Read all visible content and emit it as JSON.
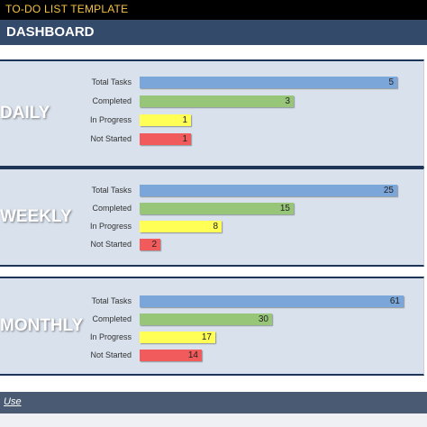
{
  "app": {
    "title": "TO-DO LIST TEMPLATE"
  },
  "header": {
    "title": "DASHBOARD"
  },
  "footer": {
    "link": "Use"
  },
  "labels": {
    "total": "Total Tasks",
    "completed": "Completed",
    "in_progress": "In Progress",
    "not_started": "Not Started"
  },
  "colors": {
    "total": "#7ba6d9",
    "completed": "#98c679",
    "in_progress": "#ffff55",
    "not_started": "#f25b5b",
    "header": "#344a6a",
    "title_text": "#f6c341"
  },
  "sections": [
    {
      "period": "DAILY",
      "total": 5,
      "completed": 3,
      "in_progress": 1,
      "not_started": 1
    },
    {
      "period": "WEEKLY",
      "total": 25,
      "completed": 15,
      "in_progress": 8,
      "not_started": 2
    },
    {
      "period": "MONTHLY",
      "total": 61,
      "completed": 30,
      "in_progress": 17,
      "not_started": 14
    }
  ]
}
